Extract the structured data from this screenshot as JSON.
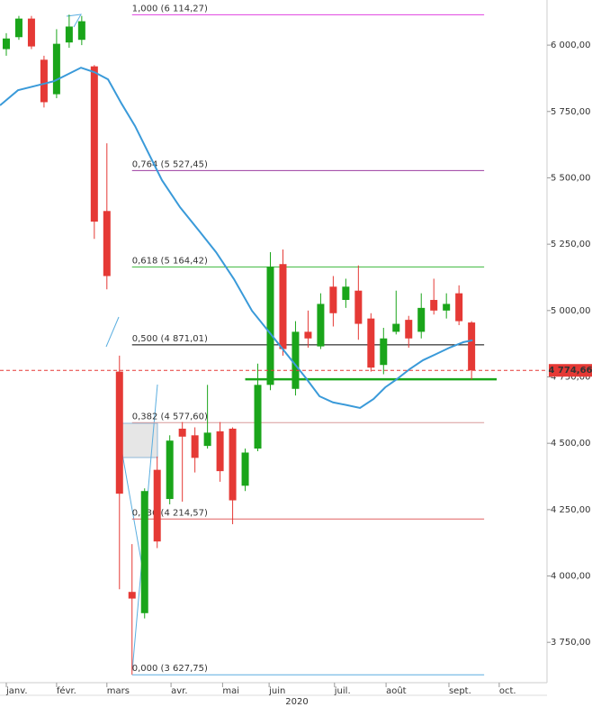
{
  "chart_data": {
    "type": "candlestick",
    "up_color": "#1aa51a",
    "down_color": "#e53935",
    "open": [
      5985,
      6030,
      6100,
      5945,
      5815,
      6010,
      6020,
      5920,
      5375,
      4770,
      3940,
      3860,
      4400,
      4290,
      4555,
      4530,
      4490,
      4545,
      4555,
      4340,
      4480,
      4720,
      5175,
      4705,
      4920,
      4865,
      5090,
      5040,
      5075,
      4970,
      4795,
      4920,
      4965,
      4920,
      5040,
      5000,
      5065,
      4955
    ],
    "high": [
      6045,
      6110,
      6110,
      5960,
      6060,
      6115,
      6110,
      5925,
      5630,
      4830,
      4120,
      4330,
      4450,
      4530,
      4580,
      4560,
      4720,
      4580,
      4560,
      4480,
      4800,
      5220,
      5230,
      4960,
      5000,
      5065,
      5130,
      5120,
      5170,
      4990,
      4935,
      5075,
      4980,
      5065,
      5120,
      5065,
      5095,
      4960
    ],
    "low": [
      5960,
      6020,
      5985,
      5765,
      5800,
      5990,
      6000,
      5270,
      5080,
      3950,
      3628,
      3840,
      4105,
      4270,
      4280,
      4390,
      4480,
      4355,
      4195,
      4320,
      4470,
      4700,
      4830,
      4680,
      4860,
      4855,
      4940,
      5010,
      4890,
      4770,
      4760,
      4910,
      4860,
      4895,
      4985,
      4970,
      4945,
      4740
    ],
    "close": [
      6025,
      6100,
      5995,
      5785,
      6005,
      6070,
      6090,
      5335,
      5130,
      4310,
      3915,
      4320,
      4130,
      4510,
      4525,
      4445,
      4540,
      4395,
      4285,
      4465,
      4720,
      5165,
      4855,
      4920,
      4895,
      5025,
      4990,
      5090,
      4950,
      4785,
      4895,
      4950,
      4895,
      5010,
      5000,
      5025,
      4960,
      4774.66
    ],
    "moving_average": {
      "color": "#3a9ad9",
      "x": [
        -0.5,
        0.93,
        2.36,
        3.79,
        5.94,
        7.01,
        8.09,
        9.16,
        10.24,
        11.31,
        12.38,
        13.82,
        15.25,
        16.68,
        18.11,
        19.54,
        20.97,
        22.4,
        23.84,
        24.91,
        25.98,
        27.06,
        28.13,
        29.21,
        30.14,
        30.99,
        32.07,
        33.14,
        34.22,
        35.29,
        36.36,
        37.08
      ],
      "values": [
        5773,
        5830,
        5847,
        5864,
        5915,
        5898,
        5871,
        5780,
        5695,
        5593,
        5491,
        5389,
        5305,
        5220,
        5118,
        4999,
        4915,
        4830,
        4745,
        4677,
        4654,
        4644,
        4633,
        4667,
        4711,
        4739,
        4779,
        4813,
        4837,
        4861,
        4881,
        4888
      ]
    },
    "fib_levels": [
      {
        "label": "1,000 (6 114,27)",
        "value": 6114.27,
        "color": "#e040e0"
      },
      {
        "label": "0,764 (5 527,45)",
        "value": 5527.45,
        "color": "#9c3ca0"
      },
      {
        "label": "0,618 (5 164,42)",
        "value": 5164.42,
        "color": "#3cb83c"
      },
      {
        "label": "0,500 (4 871,01)",
        "value": 4871.01,
        "color": "#000000"
      },
      {
        "label": "0,382 (4 577,60)",
        "value": 4577.6,
        "color": "#d89a9a"
      },
      {
        "label": "0,236 (4 214,57)",
        "value": 4214.57,
        "color": "#e06060"
      },
      {
        "label": "0,000 (3 627,75)",
        "value": 3627.75,
        "color": "#5aaee0"
      }
    ],
    "support_line": {
      "value": 4741,
      "color": "#1aa51a"
    },
    "last_price": {
      "value": 4774.66,
      "label": "4 774,66",
      "color": "#e53935"
    },
    "ylim": [
      3598,
      6170
    ],
    "yticks": [
      {
        "value": 3750,
        "label": "3 750,00"
      },
      {
        "value": 4000,
        "label": "4 000,00"
      },
      {
        "value": 4250,
        "label": "4 250,00"
      },
      {
        "value": 4500,
        "label": "4 500,00"
      },
      {
        "value": 4750,
        "label": "4 750,00"
      },
      {
        "value": 5000,
        "label": "5 000,00"
      },
      {
        "value": 5250,
        "label": "5 250,00"
      },
      {
        "value": 5500,
        "label": "5 500,00"
      },
      {
        "value": 5750,
        "label": "5 750,00"
      },
      {
        "value": 6000,
        "label": "6 000,00"
      }
    ],
    "xlim": [
      -0.5,
      43
    ],
    "xticks": [
      {
        "value": 0,
        "label": "janv."
      },
      {
        "value": 4,
        "label": "févr."
      },
      {
        "value": 8,
        "label": "mars"
      },
      {
        "value": 13.1,
        "label": "avr."
      },
      {
        "value": 17.2,
        "label": "mai"
      },
      {
        "value": 20.9,
        "label": "juin"
      },
      {
        "value": 26.1,
        "label": "juil."
      },
      {
        "value": 30.2,
        "label": "août"
      },
      {
        "value": 35.2,
        "label": "sept."
      },
      {
        "value": 39.2,
        "label": "oct."
      }
    ],
    "year_label": "2020"
  }
}
